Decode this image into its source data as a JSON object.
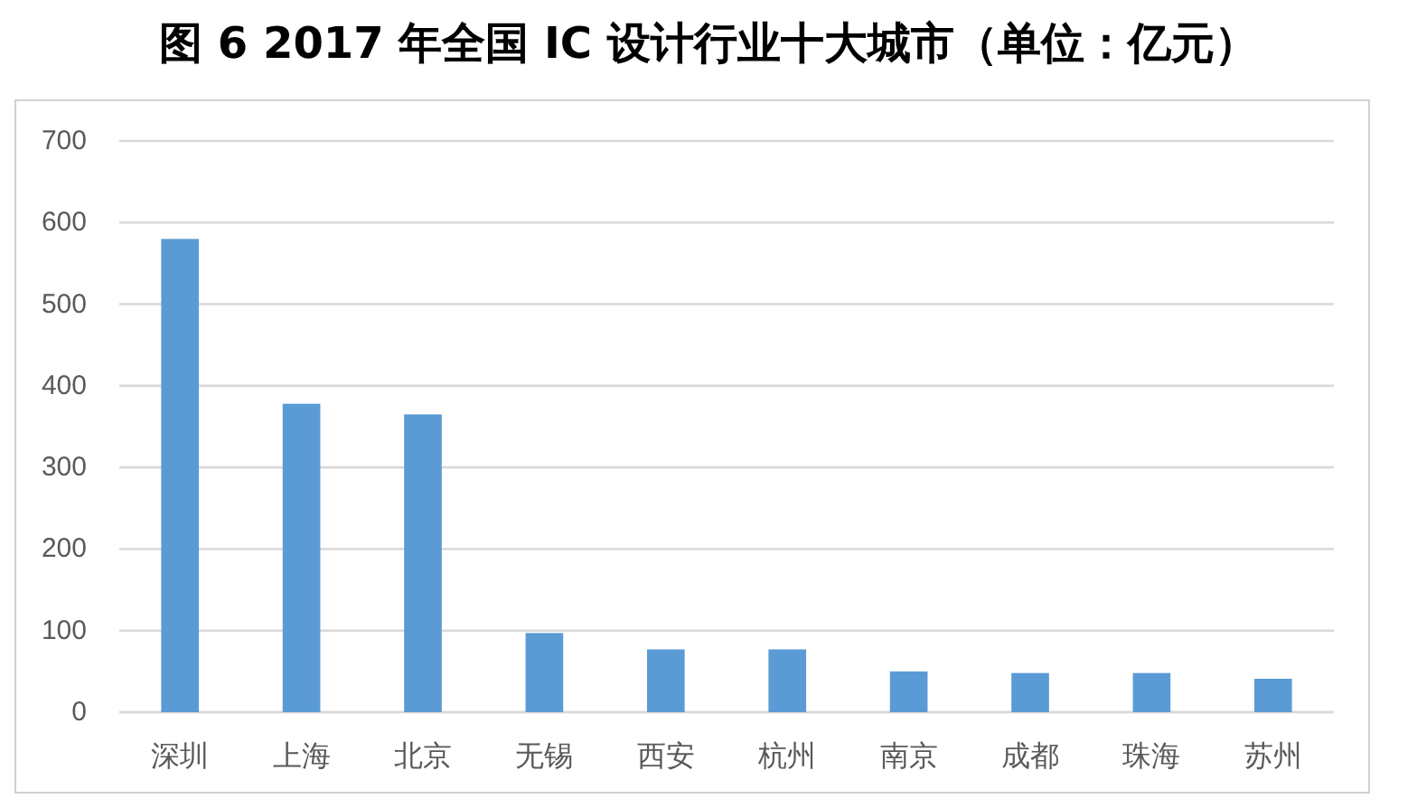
{
  "chart_data": {
    "type": "bar",
    "title": "图 6 2017 年全国 IC 设计行业十大城市（单位：亿元）",
    "categories": [
      "深圳",
      "上海",
      "北京",
      "无锡",
      "西安",
      "杭州",
      "南京",
      "成都",
      "珠海",
      "苏州"
    ],
    "values": [
      580,
      378,
      365,
      97,
      77,
      77,
      50,
      48,
      48,
      41
    ],
    "color": "#5b9bd5",
    "ylim": [
      0,
      700
    ],
    "yticks": [
      0,
      100,
      200,
      300,
      400,
      500,
      600,
      700
    ],
    "grid": "y"
  }
}
